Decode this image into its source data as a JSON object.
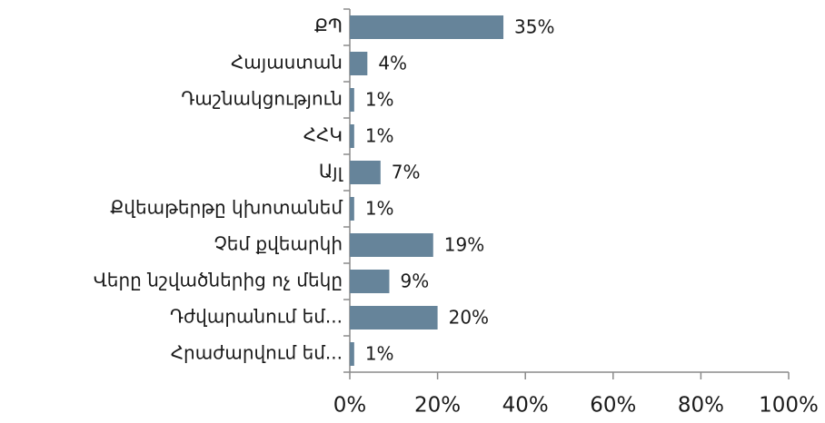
{
  "chart_data": {
    "type": "bar",
    "orientation": "horizontal",
    "categories": [
      "ՔՊ",
      "Հայաստան",
      "Դաշնակցություն",
      "ՀՀԿ",
      "Այլ",
      "Քվեաթերթը կխոտանեմ",
      "Չեմ քվեարկի",
      "Վերը նշվածներից ոչ մեկը",
      "Դժվարանում եմ...",
      "Հրաժարվում եմ..."
    ],
    "values": [
      35,
      4,
      1,
      1,
      7,
      1,
      19,
      9,
      20,
      1
    ],
    "value_labels": [
      "35%",
      "4%",
      "1%",
      "1%",
      "7%",
      "1%",
      "19%",
      "9%",
      "20%",
      "1%"
    ],
    "color": "#66849a",
    "xlim": [
      0,
      100
    ],
    "xticks": [
      {
        "value": 0,
        "label": "0%"
      },
      {
        "value": 20,
        "label": "20%"
      },
      {
        "value": 40,
        "label": "40%"
      },
      {
        "value": 60,
        "label": "60%"
      },
      {
        "value": 80,
        "label": "80%"
      },
      {
        "value": 100,
        "label": "100%"
      }
    ],
    "grid": false
  }
}
